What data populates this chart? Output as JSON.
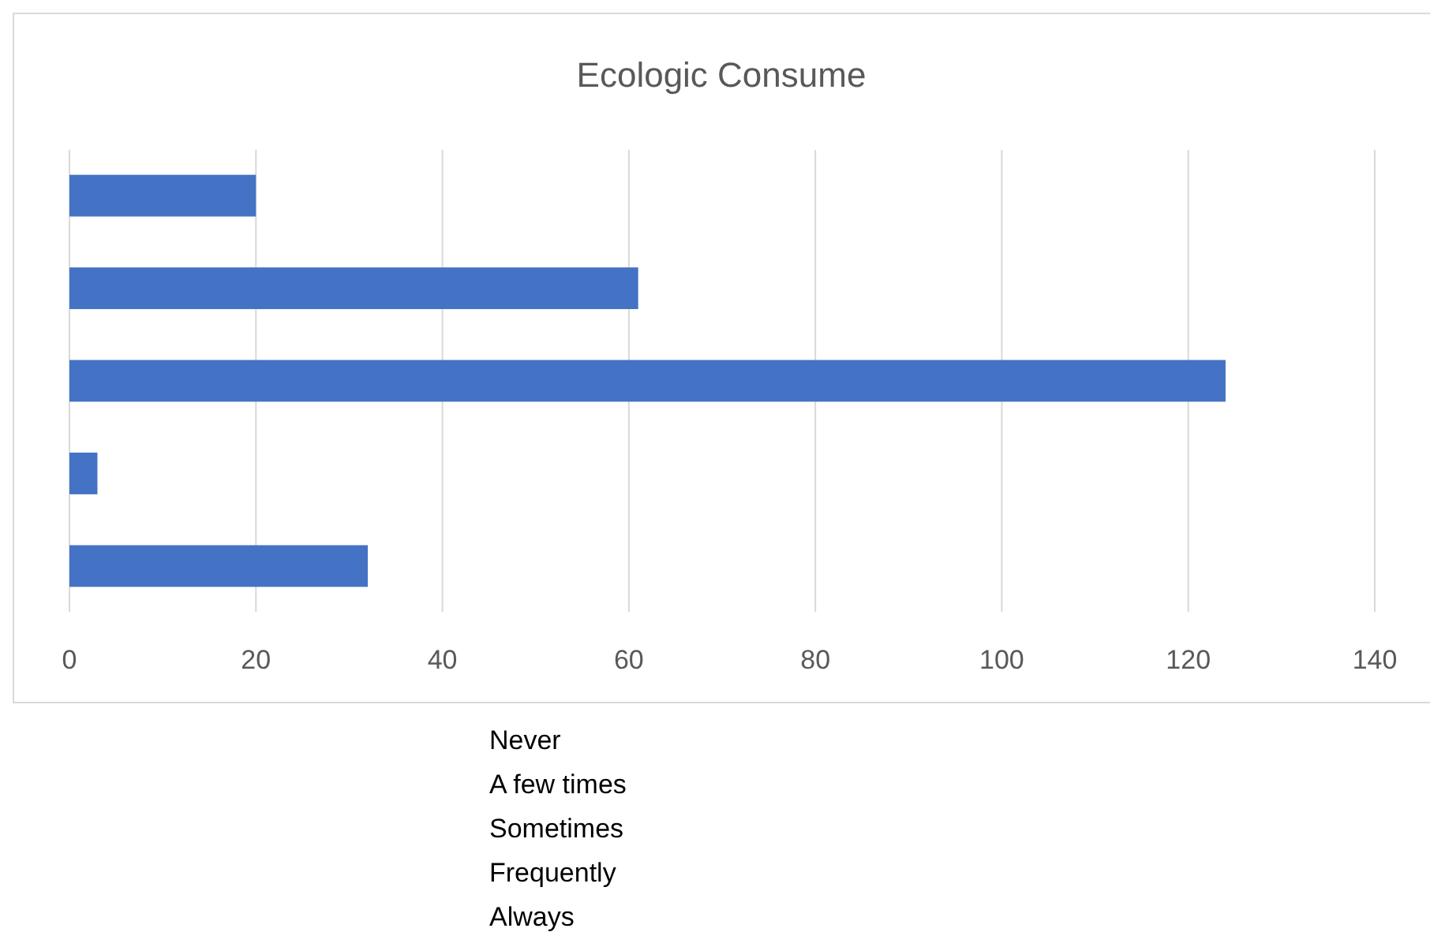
{
  "chart_data": {
    "type": "bar",
    "orientation": "horizontal",
    "title": "Ecologic Consume",
    "categories": [
      null,
      null,
      null,
      null,
      null
    ],
    "values": [
      20,
      61,
      124,
      3,
      32
    ],
    "color": "#4472c4",
    "xlim": [
      0,
      140
    ],
    "xticks": [
      0,
      20,
      40,
      60,
      80,
      100,
      120,
      140
    ],
    "grid": "x",
    "tick_labels": "x",
    "annotations": [
      "Never",
      "A few times",
      "Sometimes",
      "Frequently",
      "Always"
    ]
  }
}
